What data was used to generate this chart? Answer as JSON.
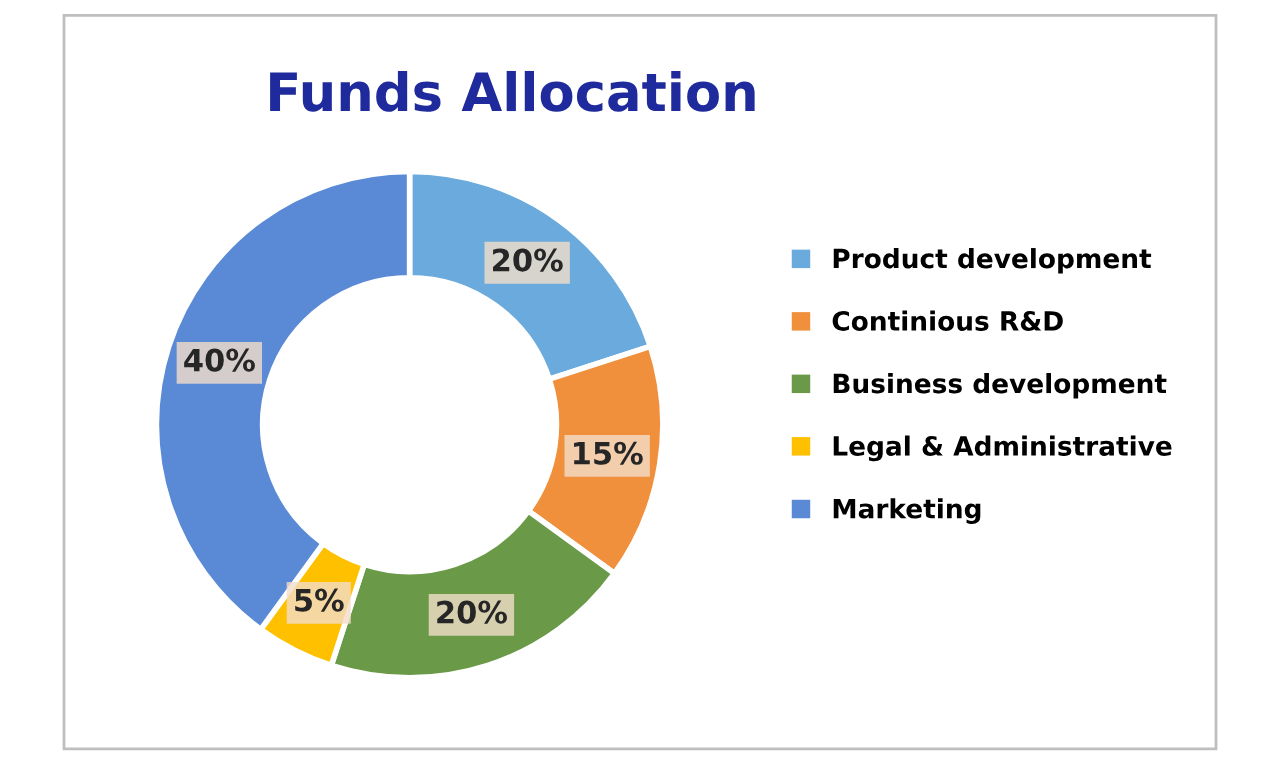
{
  "chart_data": {
    "type": "donut",
    "title": "Funds Allocation",
    "categories": [
      "Product development",
      "Continious R&D",
      "Business development",
      "Legal & Administrative",
      "Marketing"
    ],
    "values": [
      20,
      15,
      20,
      5,
      40
    ],
    "colors": [
      "#6aaadc",
      "#f0903c",
      "#6a9a48",
      "#ffc000",
      "#5a8ad6"
    ],
    "value_labels": [
      "20%",
      "15%",
      "20%",
      "5%",
      "40%"
    ],
    "legend": "right"
  }
}
